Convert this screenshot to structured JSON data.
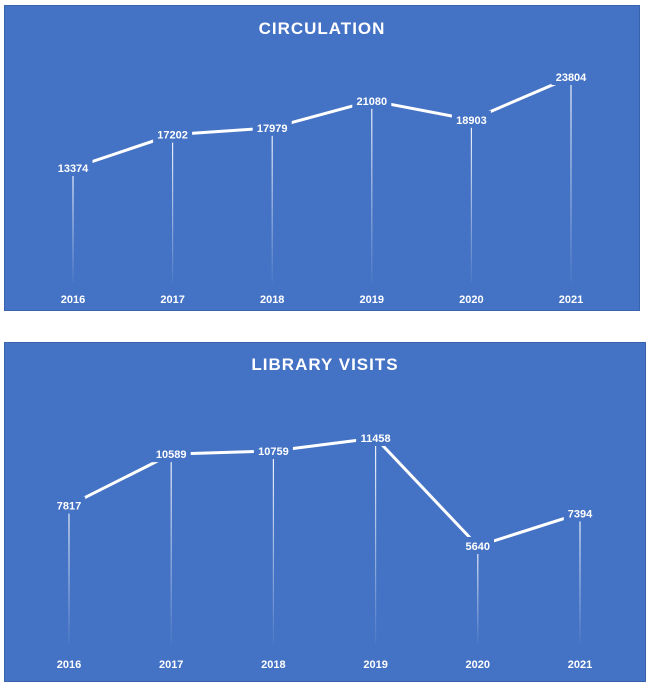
{
  "chart_data": [
    {
      "type": "line",
      "title": "CIRCULATION",
      "categories": [
        "2016",
        "2017",
        "2018",
        "2019",
        "2020",
        "2021"
      ],
      "values": [
        13374,
        17202,
        17979,
        21080,
        18903,
        23804
      ],
      "line_color": "#ffffff",
      "background": "#4472c4",
      "data_labels": true,
      "drop_lines": true,
      "grid": false,
      "legend": "none"
    },
    {
      "type": "line",
      "title": "LIBRARY VISITS",
      "categories": [
        "2016",
        "2017",
        "2018",
        "2019",
        "2020",
        "2021"
      ],
      "values": [
        7817,
        10589,
        10759,
        11458,
        5640,
        7394
      ],
      "line_color": "#ffffff",
      "background": "#4472c4",
      "data_labels": true,
      "drop_lines": true,
      "grid": false,
      "legend": "none"
    }
  ]
}
